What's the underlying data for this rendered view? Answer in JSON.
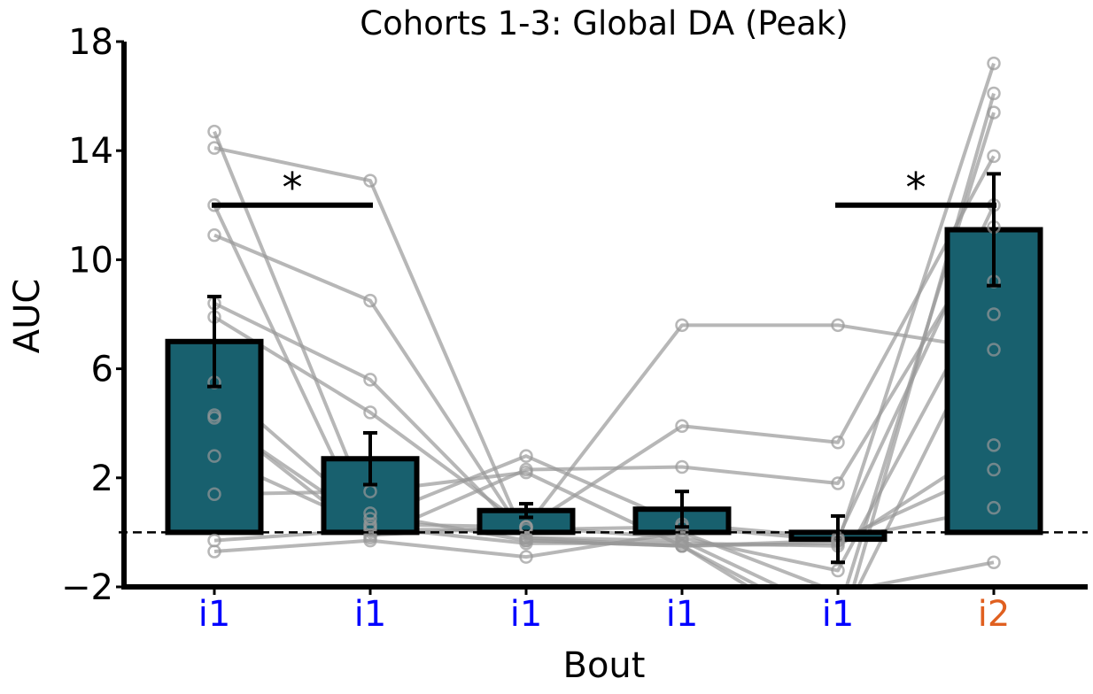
{
  "chart_data": {
    "type": "bar",
    "title": "Cohorts 1-3: Global DA (Peak)",
    "xlabel": "Bout",
    "ylabel": "AUC",
    "ylim": [
      -2,
      18
    ],
    "yticks": [
      -2,
      2,
      6,
      10,
      14,
      18
    ],
    "ytick_labels": [
      "−2",
      "2",
      "6",
      "10",
      "14",
      "18"
    ],
    "categories": [
      "i1",
      "i1",
      "i1",
      "i1",
      "i1",
      "i2"
    ],
    "category_colors": [
      "#0000ff",
      "#0000ff",
      "#0000ff",
      "#0000ff",
      "#0000ff",
      "#e06020"
    ],
    "bar_color": "#18606e",
    "values": [
      7.0,
      2.7,
      0.8,
      0.85,
      -0.25,
      11.1
    ],
    "errors": [
      1.65,
      0.95,
      0.25,
      0.65,
      0.85,
      2.05
    ],
    "baseline": 0,
    "individual_points": [
      [
        14.7,
        0.7,
        -0.3,
        -0.5,
        -3.5,
        8.0
      ],
      [
        14.1,
        12.9,
        -0.3,
        -0.5,
        -0.4,
        17.2
      ],
      [
        12.0,
        -0.1,
        0.2,
        7.6,
        7.6,
        6.7
      ],
      [
        10.9,
        8.5,
        -0.2,
        -0.5,
        -4.0,
        16.1
      ],
      [
        8.4,
        5.6,
        -0.2,
        -0.3,
        -3.0,
        15.4
      ],
      [
        7.9,
        4.4,
        0.2,
        3.9,
        3.3,
        13.8
      ],
      [
        5.5,
        0.5,
        2.8,
        0.3,
        -0.2,
        12.0
      ],
      [
        4.3,
        -0.2,
        2.3,
        2.4,
        1.8,
        11.2
      ],
      [
        4.2,
        0.3,
        0.2,
        -0.2,
        -1.4,
        9.2
      ],
      [
        2.8,
        0.2,
        -0.4,
        -0.4,
        -0.5,
        3.2
      ],
      [
        1.4,
        1.5,
        2.2,
        -0.5,
        -0.3,
        2.3
      ],
      [
        -0.3,
        0.1,
        0.1,
        0.2,
        -0.3,
        0.9
      ],
      [
        -0.7,
        -0.3,
        -0.9,
        0.0,
        -2.2,
        -1.1
      ]
    ],
    "significance": [
      {
        "from": 0,
        "to": 1,
        "y": 12.0,
        "label": "*"
      },
      {
        "from": 4,
        "to": 5,
        "y": 12.0,
        "label": "*"
      }
    ],
    "dashed_reference_line": 0,
    "colors": {
      "points": "#999999",
      "errorbar": "#000000",
      "bar_edge": "#000000"
    }
  }
}
